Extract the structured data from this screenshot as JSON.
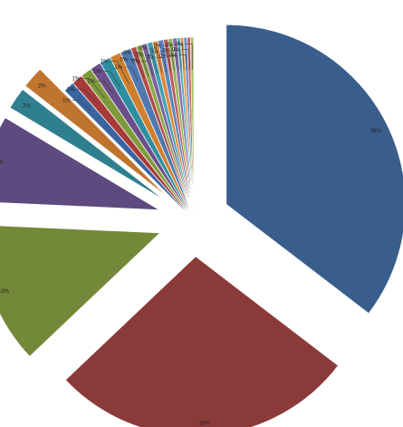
{
  "chart_data": {
    "type": "pie",
    "title": "",
    "legend": "none",
    "exploded": true,
    "slices": [
      {
        "value": 36,
        "label": "36%",
        "color": "#3a5e8c"
      },
      {
        "value": 28,
        "label": "28%",
        "color": "#8b3a3a"
      },
      {
        "value": 13,
        "label": "13%",
        "color": "#74883a"
      },
      {
        "value": 8,
        "label": "8%",
        "color": "#5e4a7e"
      },
      {
        "value": 2,
        "label": "2%",
        "color": "#2f7f8f"
      },
      {
        "value": 2,
        "label": "2%",
        "color": "#c0752e"
      },
      {
        "value": 1,
        "label": "1%",
        "color": "#3a64a0"
      },
      {
        "value": 1,
        "label": "1%",
        "color": "#a83a3a"
      },
      {
        "value": 1,
        "label": "1%",
        "color": "#7f9a3a"
      },
      {
        "value": 1,
        "label": "1%",
        "color": "#6a4f8a"
      },
      {
        "value": 1,
        "label": "1%",
        "color": "#2e8ea0"
      },
      {
        "value": 1,
        "label": "1%",
        "color": "#d07f2e"
      },
      {
        "value": 1,
        "label": "1%",
        "color": "#4f79b0"
      },
      {
        "value": 0.5,
        "label": "0%",
        "color": "#b44a48"
      },
      {
        "value": 0.5,
        "label": "0%",
        "color": "#8ca84a"
      },
      {
        "value": 0.5,
        "label": "0%",
        "color": "#7a62a0"
      },
      {
        "value": 0.5,
        "label": "0%",
        "color": "#3fa0b4"
      },
      {
        "value": 0.5,
        "label": "0%",
        "color": "#e08a3a"
      },
      {
        "value": 0.5,
        "label": "0%",
        "color": "#5a86c0"
      },
      {
        "value": 0.4,
        "label": "0%",
        "color": "#c05a5a"
      },
      {
        "value": 0.4,
        "label": "0%",
        "color": "#9ab85a"
      },
      {
        "value": 0.4,
        "label": "0%",
        "color": "#8a72b0"
      },
      {
        "value": 0.3,
        "label": "0%",
        "color": "#50b0c4"
      },
      {
        "value": 0.3,
        "label": "0%",
        "color": "#e89a50"
      },
      {
        "value": 0.3,
        "label": "0%",
        "color": "#6a92c8"
      },
      {
        "value": 0.3,
        "label": "0%",
        "color": "#c86a6a"
      },
      {
        "value": 0.3,
        "label": "0%",
        "color": "#a8c46a"
      }
    ]
  }
}
